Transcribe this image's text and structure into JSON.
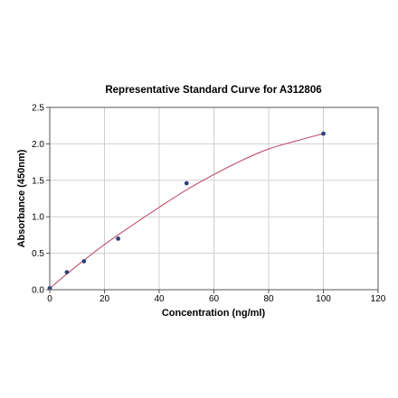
{
  "chart_data": {
    "type": "scatter",
    "title": "Representative Standard Curve for A312806",
    "xlabel": "Concentration (ng/ml)",
    "ylabel": "Absorbance (450nm)",
    "xlim": [
      0,
      120
    ],
    "ylim": [
      0,
      2.5
    ],
    "x_ticks": [
      "0",
      "20",
      "40",
      "60",
      "80",
      "100",
      "120"
    ],
    "y_ticks": [
      "0.0",
      "0.5",
      "1.0",
      "1.5",
      "2.0",
      "2.5"
    ],
    "grid": true,
    "points": {
      "x": [
        0,
        6.25,
        12.5,
        25,
        50,
        100
      ],
      "y": [
        0.02,
        0.24,
        0.39,
        0.7,
        1.46,
        2.14
      ],
      "color": "#2f3f7f"
    },
    "fit_curve": {
      "color": "#c0506a",
      "x": [
        0,
        10,
        20,
        30,
        40,
        50,
        60,
        70,
        80,
        90,
        100
      ],
      "y": [
        0.02,
        0.33,
        0.62,
        0.88,
        1.13,
        1.37,
        1.58,
        1.77,
        1.93,
        2.04,
        2.14
      ]
    }
  }
}
